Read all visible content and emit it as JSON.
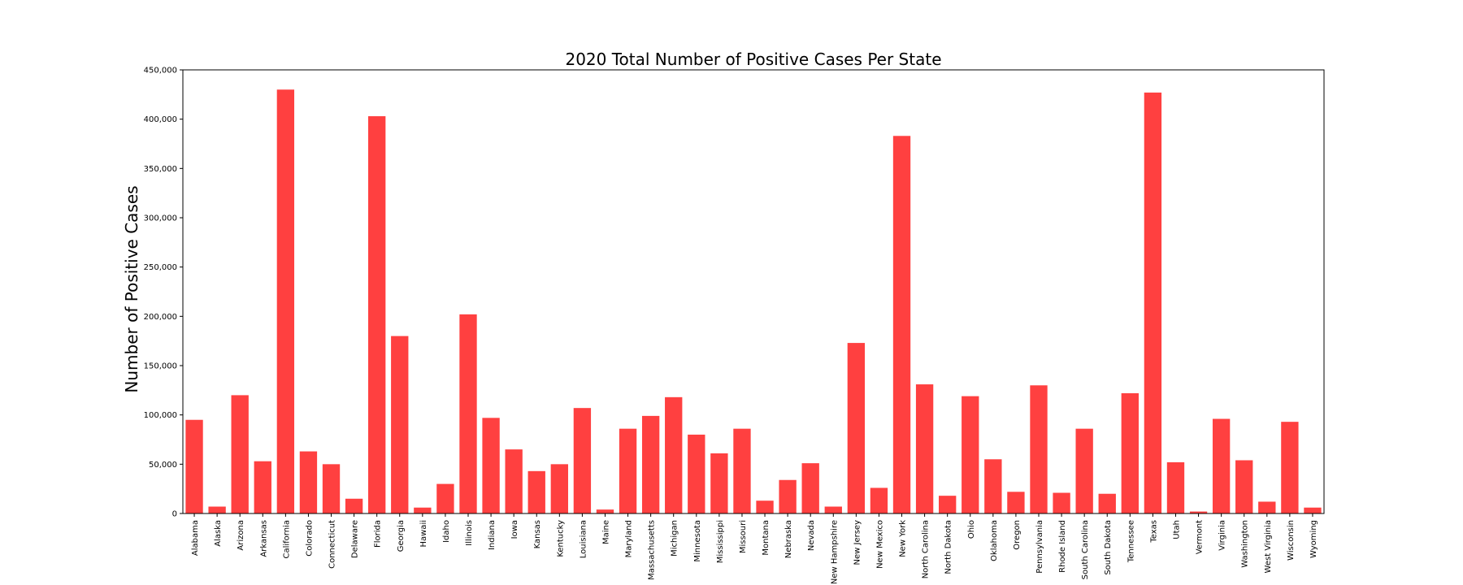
{
  "chart_data": {
    "type": "bar",
    "title": "2020 Total Number of Positive Cases Per State",
    "xlabel": "",
    "ylabel": "Number of Positive Cases",
    "ylim": [
      0,
      450000
    ],
    "yticks": [
      "0",
      "50,000",
      "100,000",
      "150,000",
      "200,000",
      "250,000",
      "300,000",
      "350,000",
      "400,000",
      "450,000"
    ],
    "bar_color": "#ff4040",
    "grid": false,
    "legend": "none",
    "categories": [
      "Alabama",
      "Alaska",
      "Arizona",
      "Arkansas",
      "California",
      "Colorado",
      "Connecticut",
      "Delaware",
      "Florida",
      "Georgia",
      "Hawaii",
      "Idaho",
      "Illinois",
      "Indiana",
      "Iowa",
      "Kansas",
      "Kentucky",
      "Louisiana",
      "Maine",
      "Maryland",
      "Massachusetts",
      "Michigan",
      "Minnesota",
      "Mississippi",
      "Missouri",
      "Montana",
      "Nebraska",
      "Nevada",
      "New Hampshire",
      "New Jersey",
      "New Mexico",
      "New York",
      "North Carolina",
      "North Dakota",
      "Ohio",
      "Oklahoma",
      "Oregon",
      "Pennsylvania",
      "Rhode Island",
      "South Carolina",
      "South Dakota",
      "Tennessee",
      "Texas",
      "Utah",
      "Vermont",
      "Virginia",
      "Washington",
      "West Virginia",
      "Wisconsin",
      "Wyoming"
    ],
    "values": [
      95000,
      7000,
      120000,
      53000,
      430000,
      63000,
      50000,
      15000,
      403000,
      180000,
      6000,
      30000,
      202000,
      97000,
      65000,
      43000,
      50000,
      107000,
      4000,
      86000,
      99000,
      118000,
      80000,
      61000,
      86000,
      13000,
      34000,
      51000,
      7000,
      173000,
      26000,
      383000,
      131000,
      18000,
      119000,
      55000,
      22000,
      130000,
      21000,
      86000,
      20000,
      122000,
      427000,
      52000,
      2000,
      96000,
      54000,
      12000,
      93000,
      6000
    ]
  }
}
